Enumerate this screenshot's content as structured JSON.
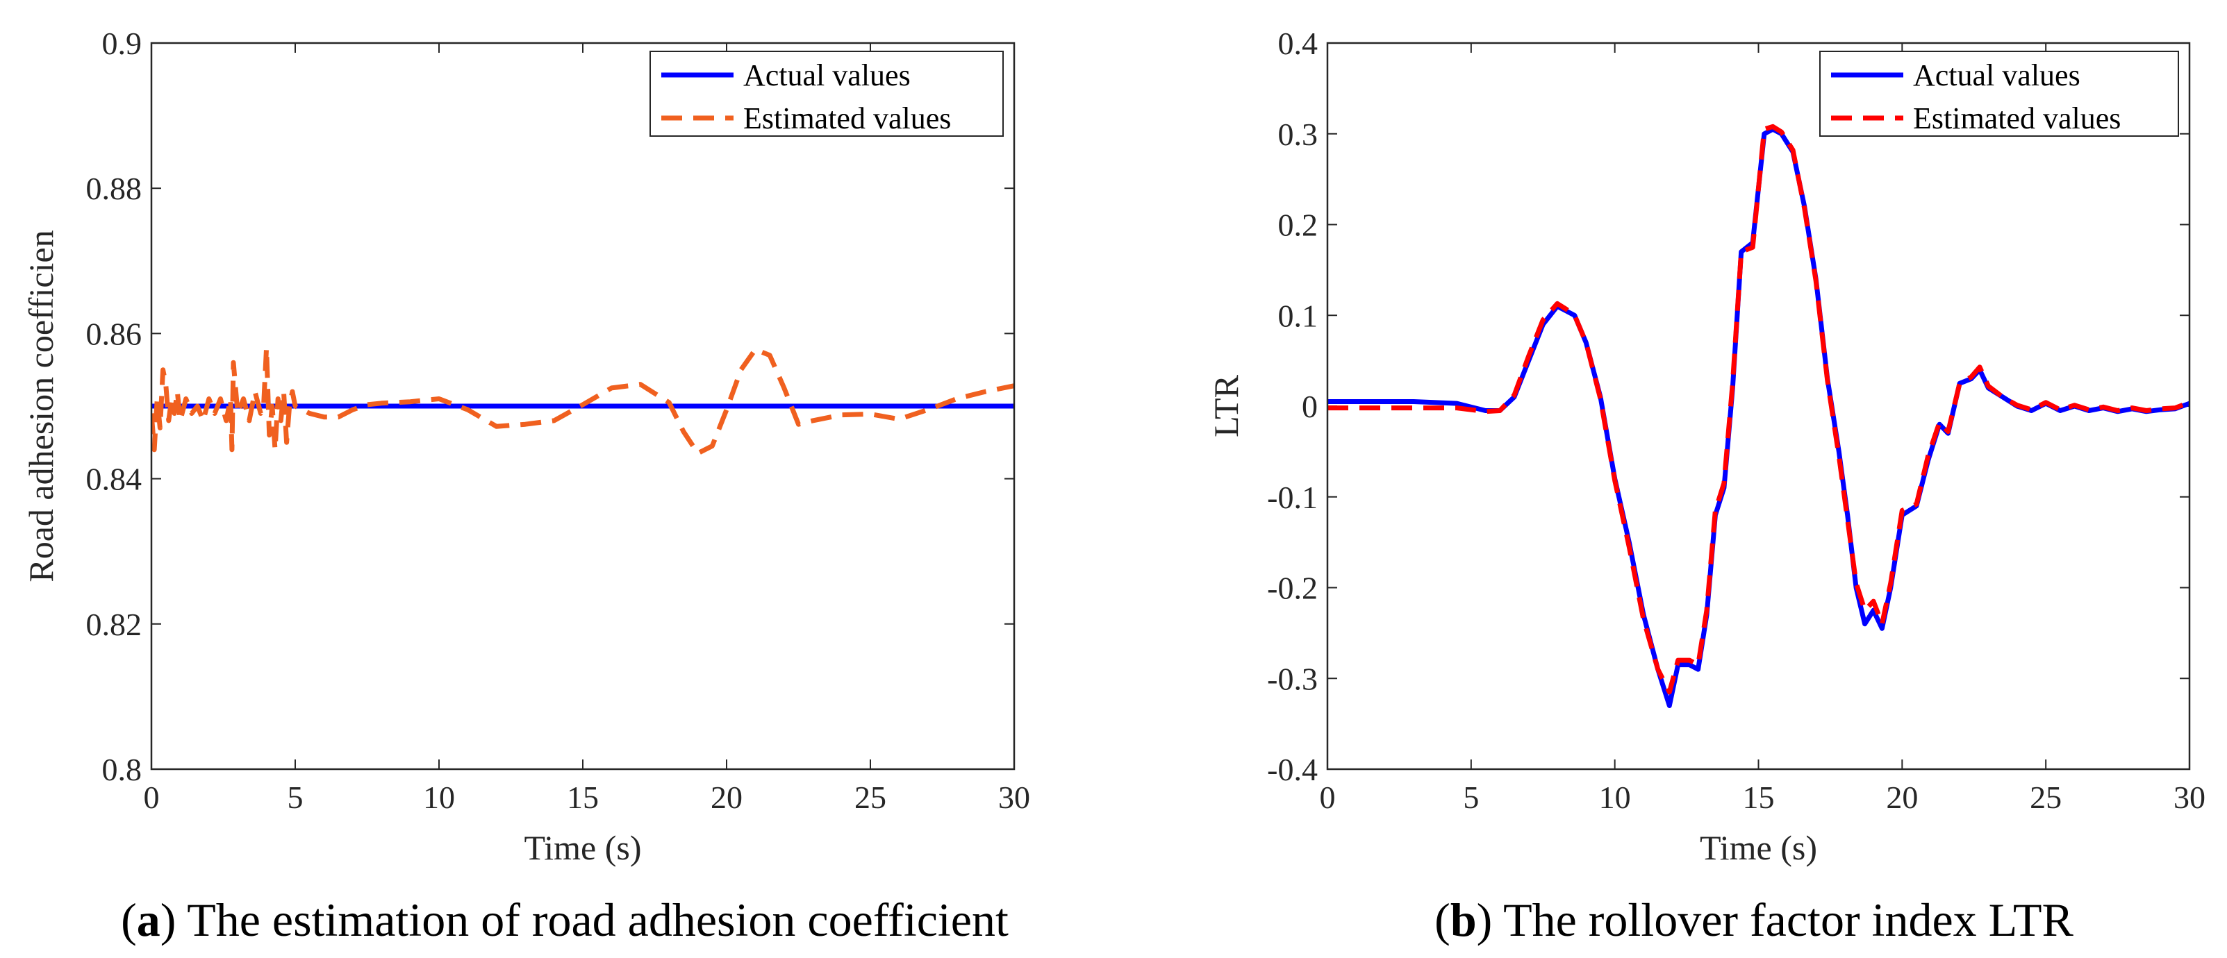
{
  "chart_data": [
    {
      "id": "a",
      "type": "line",
      "caption_letter": "a",
      "caption_text": "The estimation of road adhesion coefficient",
      "xlabel": "Time (s)",
      "ylabel": "Road adhesion coefficien",
      "xlim": [
        0,
        30
      ],
      "ylim": [
        0.8,
        0.9
      ],
      "xticks": [
        "0",
        "5",
        "10",
        "15",
        "20",
        "25",
        "30"
      ],
      "yticks": [
        "0.8",
        "0.82",
        "0.84",
        "0.86",
        "0.88",
        "0.9"
      ],
      "legend": {
        "position": "top-right",
        "entries": [
          "Actual values",
          "Estimated values"
        ]
      },
      "series": [
        {
          "name": "Actual values",
          "color": "#0000ff",
          "style": "solid",
          "x": [
            0,
            30
          ],
          "y": [
            0.85,
            0.85
          ]
        },
        {
          "name": "Estimated values",
          "color": "#f0601f",
          "style": "dashed",
          "x": [
            0.0,
            0.1,
            0.2,
            0.3,
            0.4,
            0.5,
            0.6,
            0.7,
            0.8,
            0.9,
            1.0,
            1.2,
            1.4,
            1.6,
            1.8,
            2.0,
            2.2,
            2.4,
            2.6,
            2.75,
            2.8,
            2.85,
            3.0,
            3.2,
            3.4,
            3.5,
            3.6,
            3.8,
            3.9,
            4.0,
            4.1,
            4.2,
            4.3,
            4.4,
            4.5,
            4.6,
            4.7,
            4.8,
            4.9,
            5.0,
            5.5,
            6.0,
            6.5,
            7.0,
            7.5,
            8.0,
            9.0,
            10.0,
            11.0,
            12.0,
            13.0,
            14.0,
            15.0,
            16.0,
            17.0,
            18.0,
            18.5,
            19.0,
            19.5,
            20.0,
            20.5,
            21.0,
            21.5,
            22.0,
            22.5,
            23.0,
            24.0,
            25.0,
            26.0,
            27.0,
            28.0,
            29.0,
            30.0
          ],
          "y": [
            0.849,
            0.844,
            0.851,
            0.847,
            0.855,
            0.853,
            0.848,
            0.851,
            0.849,
            0.852,
            0.848,
            0.851,
            0.849,
            0.85,
            0.848,
            0.851,
            0.849,
            0.851,
            0.848,
            0.851,
            0.844,
            0.856,
            0.849,
            0.851,
            0.848,
            0.85,
            0.852,
            0.849,
            0.85,
            0.858,
            0.846,
            0.85,
            0.844,
            0.851,
            0.848,
            0.852,
            0.845,
            0.85,
            0.852,
            0.85,
            0.849,
            0.8485,
            0.8485,
            0.8495,
            0.8502,
            0.8504,
            0.8506,
            0.851,
            0.8495,
            0.8472,
            0.8475,
            0.848,
            0.8502,
            0.8525,
            0.853,
            0.8505,
            0.8465,
            0.8435,
            0.8445,
            0.8495,
            0.855,
            0.8578,
            0.857,
            0.8525,
            0.8475,
            0.848,
            0.8488,
            0.8489,
            0.8482,
            0.8495,
            0.851,
            0.852,
            0.8528
          ]
        }
      ]
    },
    {
      "id": "b",
      "type": "line",
      "caption_letter": "b",
      "caption_text": "The rollover factor index LTR",
      "xlabel": "Time (s)",
      "ylabel": "LTR",
      "xlim": [
        0,
        30
      ],
      "ylim": [
        -0.4,
        0.4
      ],
      "xticks": [
        "0",
        "5",
        "10",
        "15",
        "20",
        "25",
        "30"
      ],
      "yticks": [
        "-0.4",
        "-0.3",
        "-0.2",
        "-0.1",
        "0",
        "0.1",
        "0.2",
        "0.3",
        "0.4"
      ],
      "legend": {
        "position": "top-right",
        "entries": [
          "Actual values",
          "Estimated values"
        ]
      },
      "series": [
        {
          "name": "Actual values",
          "color": "#0000ff",
          "style": "solid",
          "x": [
            0,
            3,
            4.5,
            5.5,
            6.0,
            6.5,
            7.0,
            7.5,
            8.0,
            8.3,
            8.6,
            9.0,
            9.5,
            10.0,
            10.5,
            11.0,
            11.5,
            11.9,
            12.2,
            12.6,
            12.9,
            13.2,
            13.5,
            13.8,
            14.1,
            14.4,
            14.8,
            15.2,
            15.5,
            15.8,
            16.2,
            16.6,
            17.0,
            17.4,
            17.8,
            18.1,
            18.4,
            18.7,
            19.0,
            19.3,
            19.6,
            20.0,
            20.5,
            20.9,
            21.3,
            21.6,
            22.0,
            22.4,
            22.7,
            23.0,
            23.5,
            24.0,
            24.5,
            25.0,
            25.5,
            26.0,
            26.5,
            27.0,
            27.5,
            28.0,
            28.5,
            29.0,
            29.5,
            30.0
          ],
          "y": [
            0.005,
            0.005,
            0.003,
            -0.005,
            -0.005,
            0.01,
            0.05,
            0.09,
            0.11,
            0.105,
            0.1,
            0.07,
            0.01,
            -0.08,
            -0.15,
            -0.23,
            -0.29,
            -0.33,
            -0.285,
            -0.285,
            -0.29,
            -0.23,
            -0.12,
            -0.09,
            0.02,
            0.17,
            0.18,
            0.3,
            0.305,
            0.3,
            0.28,
            0.22,
            0.14,
            0.03,
            -0.05,
            -0.12,
            -0.2,
            -0.24,
            -0.225,
            -0.245,
            -0.2,
            -0.12,
            -0.11,
            -0.06,
            -0.02,
            -0.03,
            0.025,
            0.03,
            0.04,
            0.02,
            0.01,
            0.0,
            -0.005,
            0.003,
            -0.005,
            0.0,
            -0.005,
            -0.002,
            -0.006,
            -0.003,
            -0.006,
            -0.004,
            -0.003,
            0.003
          ]
        },
        {
          "name": "Estimated values",
          "color": "#ff0000",
          "style": "dashed",
          "x": [
            0,
            3,
            4.5,
            5.5,
            6.0,
            6.5,
            7.0,
            7.5,
            8.0,
            8.3,
            8.6,
            9.0,
            9.5,
            10.0,
            10.5,
            11.0,
            11.5,
            11.9,
            12.2,
            12.6,
            12.9,
            13.2,
            13.5,
            13.8,
            14.1,
            14.4,
            14.8,
            15.2,
            15.5,
            15.8,
            16.2,
            16.6,
            17.0,
            17.4,
            17.8,
            18.1,
            18.4,
            18.7,
            19.0,
            19.3,
            19.6,
            20.0,
            20.5,
            20.9,
            21.3,
            21.6,
            22.0,
            22.4,
            22.7,
            23.0,
            23.5,
            24.0,
            24.5,
            25.0,
            25.5,
            26.0,
            26.5,
            27.0,
            27.5,
            28.0,
            28.5,
            29.0,
            29.5,
            30.0
          ],
          "y": [
            -0.002,
            -0.002,
            -0.002,
            -0.006,
            -0.005,
            0.012,
            0.055,
            0.095,
            0.113,
            0.107,
            0.1,
            0.07,
            0.008,
            -0.082,
            -0.155,
            -0.235,
            -0.29,
            -0.315,
            -0.28,
            -0.28,
            -0.285,
            -0.225,
            -0.115,
            -0.085,
            0.025,
            0.17,
            0.175,
            0.305,
            0.308,
            0.302,
            0.282,
            0.218,
            0.138,
            0.028,
            -0.055,
            -0.125,
            -0.195,
            -0.225,
            -0.215,
            -0.24,
            -0.195,
            -0.115,
            -0.108,
            -0.055,
            -0.018,
            -0.028,
            0.025,
            0.032,
            0.043,
            0.022,
            0.01,
            0.001,
            -0.004,
            0.004,
            -0.004,
            0.001,
            -0.004,
            -0.001,
            -0.005,
            -0.002,
            -0.005,
            -0.003,
            -0.002,
            0.004
          ]
        }
      ]
    }
  ]
}
